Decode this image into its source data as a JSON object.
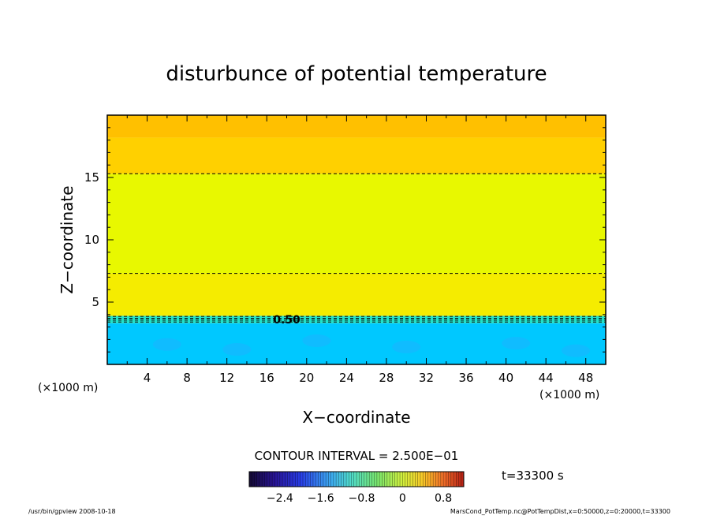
{
  "chart_data": {
    "type": "heatmap",
    "title": "disturbunce of potential temperature",
    "xlabel": "X−coordinate",
    "ylabel": "Z−coordinate",
    "x_unit": "(×1000 m)",
    "z_unit": "(×1000 m)",
    "xlim": [
      0,
      50
    ],
    "ylim": [
      0,
      20
    ],
    "x_ticks": [
      4,
      8,
      12,
      16,
      20,
      24,
      28,
      32,
      36,
      40,
      44,
      48
    ],
    "y_ticks": [
      5,
      10,
      15
    ],
    "bands": [
      {
        "z_from": 0,
        "z_to": 3.3,
        "color": "#00c8ff"
      },
      {
        "z_from": 3.3,
        "z_to": 3.9,
        "color": "#22e0c8"
      },
      {
        "z_from": 3.9,
        "z_to": 7.3,
        "color": "#f5ec00"
      },
      {
        "z_from": 7.3,
        "z_to": 15.3,
        "color": "#e8f800"
      },
      {
        "z_from": 15.3,
        "z_to": 18.2,
        "color": "#ffd000"
      },
      {
        "z_from": 18.2,
        "z_to": 20,
        "color": "#ffc000"
      }
    ],
    "contours_z": [
      3.4,
      3.55,
      3.7,
      3.85,
      7.3,
      15.3
    ],
    "contour_label": {
      "text": "0.50",
      "x": 18,
      "z": 3.6
    },
    "contour_interval": "CONTOUR INTERVAL = 2.500E−01",
    "colorbar": {
      "range": [
        -3.0,
        1.2
      ],
      "tick_values": [
        -2.4,
        -1.6,
        -0.8,
        0,
        0.8
      ],
      "tick_labels": [
        "−2.4",
        "−1.6",
        "−0.8",
        "0",
        "0.8"
      ]
    },
    "time_label": "t=33300 s"
  },
  "footer": {
    "left": "/usr/bin/gpview   2008-10-18",
    "right": "MarsCond_PotTemp.nc@PotTempDist,x=0:50000,z=0:20000,t=33300"
  }
}
